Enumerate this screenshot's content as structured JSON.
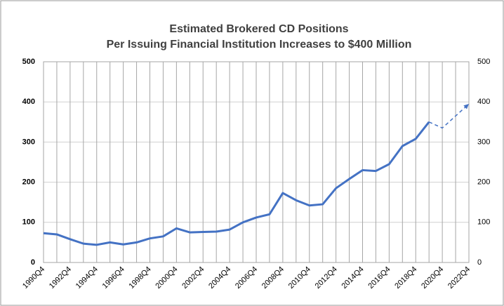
{
  "chart_data": {
    "type": "line",
    "title": [
      "Estimated Brokered CD Positions",
      "Per Issuing Financial Institution Increases to $400 Million"
    ],
    "categories": [
      "1990Q4",
      null,
      "1992Q4",
      null,
      "1994Q4",
      null,
      "1996Q4",
      null,
      "1998Q4",
      null,
      "2000Q4",
      null,
      "2002Q4",
      null,
      "2004Q4",
      null,
      "2006Q4",
      null,
      "2008Q4",
      null,
      "2010Q4",
      null,
      "2012Q4",
      null,
      "2014Q4",
      null,
      "2016Q4",
      null,
      "2018Q4",
      null,
      "2020Q4",
      null,
      "2022Q4"
    ],
    "series": [
      {
        "color": "#4472c4",
        "dashed": false,
        "axis": "y",
        "values": [
          73,
          70,
          58,
          47,
          44,
          50,
          45,
          50,
          60,
          65,
          85,
          75,
          76,
          77,
          82,
          100,
          112,
          120,
          173,
          155,
          142,
          145,
          185,
          208,
          230,
          228,
          245,
          290,
          308,
          350,
          null,
          null,
          null
        ]
      },
      {
        "color": "#4472c4",
        "dashed": true,
        "axis": "y",
        "values": [
          null,
          null,
          null,
          null,
          null,
          null,
          null,
          null,
          null,
          null,
          null,
          null,
          null,
          null,
          null,
          null,
          null,
          null,
          null,
          null,
          null,
          null,
          null,
          null,
          null,
          null,
          null,
          null,
          null,
          350,
          335,
          365,
          395
        ]
      }
    ],
    "ylim": [
      0,
      500
    ],
    "yticks": [
      0,
      100,
      200,
      300,
      400,
      500
    ],
    "y2lim": [
      0,
      500
    ],
    "y2ticks": [
      0,
      100,
      200,
      300,
      400,
      500
    ],
    "grid": true
  }
}
